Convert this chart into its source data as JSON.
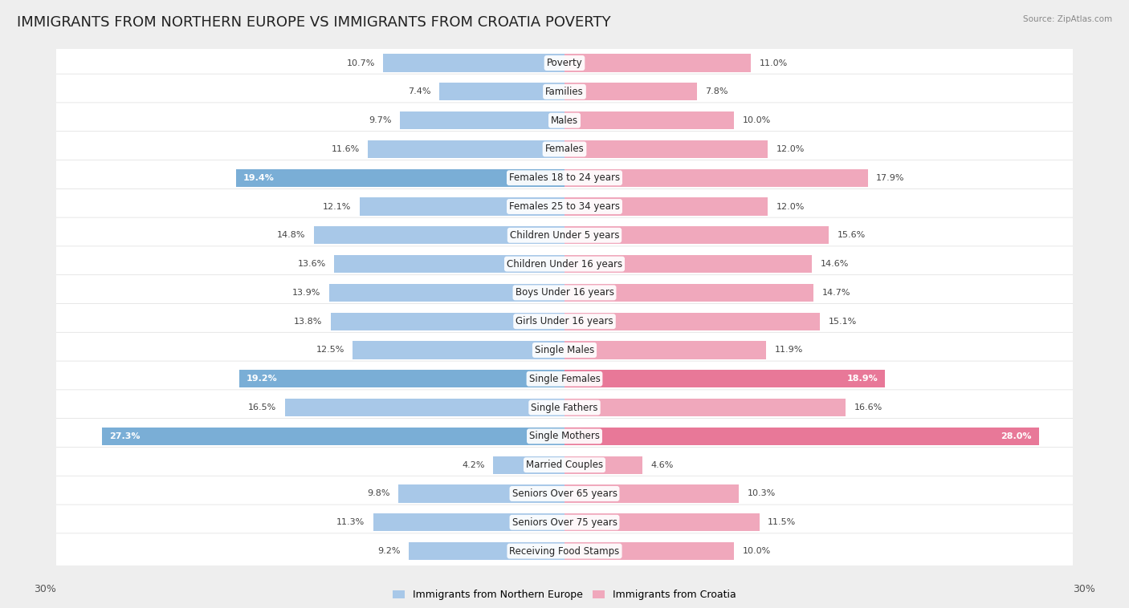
{
  "title": "IMMIGRANTS FROM NORTHERN EUROPE VS IMMIGRANTS FROM CROATIA POVERTY",
  "source": "Source: ZipAtlas.com",
  "categories": [
    "Poverty",
    "Families",
    "Males",
    "Females",
    "Females 18 to 24 years",
    "Females 25 to 34 years",
    "Children Under 5 years",
    "Children Under 16 years",
    "Boys Under 16 years",
    "Girls Under 16 years",
    "Single Males",
    "Single Females",
    "Single Fathers",
    "Single Mothers",
    "Married Couples",
    "Seniors Over 65 years",
    "Seniors Over 75 years",
    "Receiving Food Stamps"
  ],
  "left_values": [
    10.7,
    7.4,
    9.7,
    11.6,
    19.4,
    12.1,
    14.8,
    13.6,
    13.9,
    13.8,
    12.5,
    19.2,
    16.5,
    27.3,
    4.2,
    9.8,
    11.3,
    9.2
  ],
  "right_values": [
    11.0,
    7.8,
    10.0,
    12.0,
    17.9,
    12.0,
    15.6,
    14.6,
    14.7,
    15.1,
    11.9,
    18.9,
    16.6,
    28.0,
    4.6,
    10.3,
    11.5,
    10.0
  ],
  "left_color_normal": "#a8c8e8",
  "left_color_high": "#7aaed6",
  "right_color_normal": "#f0a8bc",
  "right_color_high": "#e87898",
  "left_label": "Immigrants from Northern Europe",
  "right_label": "Immigrants from Croatia",
  "axis_max": 30.0,
  "highlight_threshold": 18.0,
  "bg_color": "#eeeeee",
  "row_bg_color": "#ffffff",
  "row_sep_color": "#dddddd",
  "title_fontsize": 13,
  "cat_fontsize": 8.5,
  "val_fontsize": 8.0,
  "axis_fontsize": 9
}
